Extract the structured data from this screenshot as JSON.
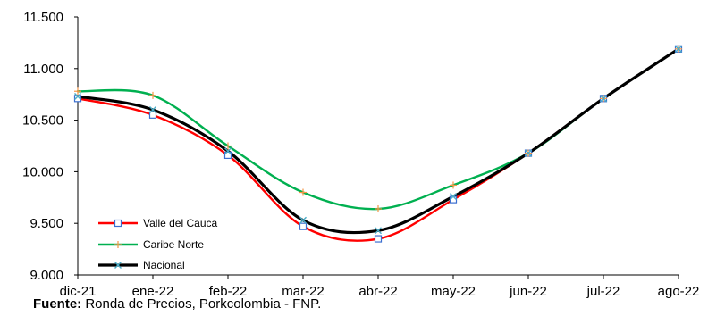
{
  "chart_data": {
    "type": "line",
    "title": "",
    "xlabel": "",
    "ylabel": "",
    "categories": [
      "dic-21",
      "ene-22",
      "feb-22",
      "mar-22",
      "abr-22",
      "may-22",
      "jun-22",
      "jul-22",
      "ago-22"
    ],
    "yticks": [
      "9.000",
      "9.500",
      "10.000",
      "10.500",
      "11.000",
      "11.500"
    ],
    "ylim": [
      9000,
      11500
    ],
    "grid": false,
    "legend_position": "bottom-left",
    "series": [
      {
        "name": "Valle del Cauca",
        "color": "#ff0000",
        "marker": "square",
        "values": [
          10710,
          10550,
          10160,
          9470,
          9350,
          9730,
          10180,
          10710,
          11190
        ]
      },
      {
        "name": "Caribe Norte",
        "color": "#00b050",
        "marker": "plus",
        "values": [
          10780,
          10740,
          10250,
          9800,
          9640,
          9870,
          10180,
          10710,
          11190
        ]
      },
      {
        "name": "Nacional",
        "color": "#000000",
        "marker": "cross",
        "values": [
          10730,
          10600,
          10200,
          9530,
          9430,
          9760,
          10180,
          10710,
          11190
        ]
      }
    ]
  },
  "source": {
    "label": "Fuente:",
    "text": " Ronda de Precios, Porkcolombia  - FNP."
  }
}
